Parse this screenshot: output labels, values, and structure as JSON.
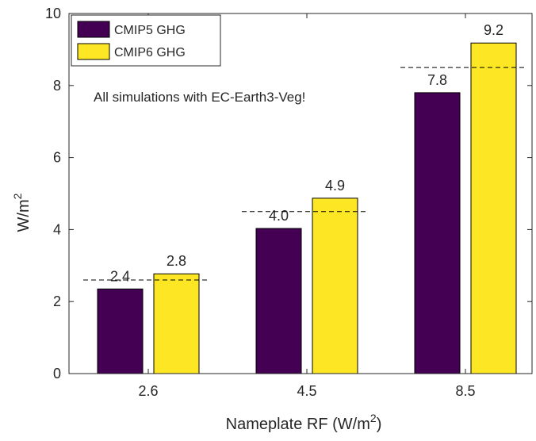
{
  "chart_data": {
    "type": "bar",
    "categories": [
      "2.6",
      "4.5",
      "8.5"
    ],
    "series": [
      {
        "name": "CMIP5 GHG",
        "color": "#440154",
        "values": [
          2.35,
          4.03,
          7.8
        ],
        "value_labels": [
          "2.4",
          "4.0",
          "7.8"
        ]
      },
      {
        "name": "CMIP6 GHG",
        "color": "#fde725",
        "values": [
          2.77,
          4.87,
          9.18
        ],
        "value_labels": [
          "2.8",
          "4.9",
          "9.2"
        ]
      }
    ],
    "reference_lines": [
      2.6,
      4.5,
      8.5
    ],
    "annotation": "All simulations with EC-Earth3-Veg!",
    "ylabel": {
      "main": "W/m",
      "sup": "2"
    },
    "xlabel": {
      "main": "Nameplate RF (W/m",
      "sup": "2",
      "end": ")"
    },
    "ylim": [
      0,
      10
    ],
    "yticks": [
      0,
      2,
      4,
      6,
      8,
      10
    ],
    "legend": "upper-left"
  }
}
